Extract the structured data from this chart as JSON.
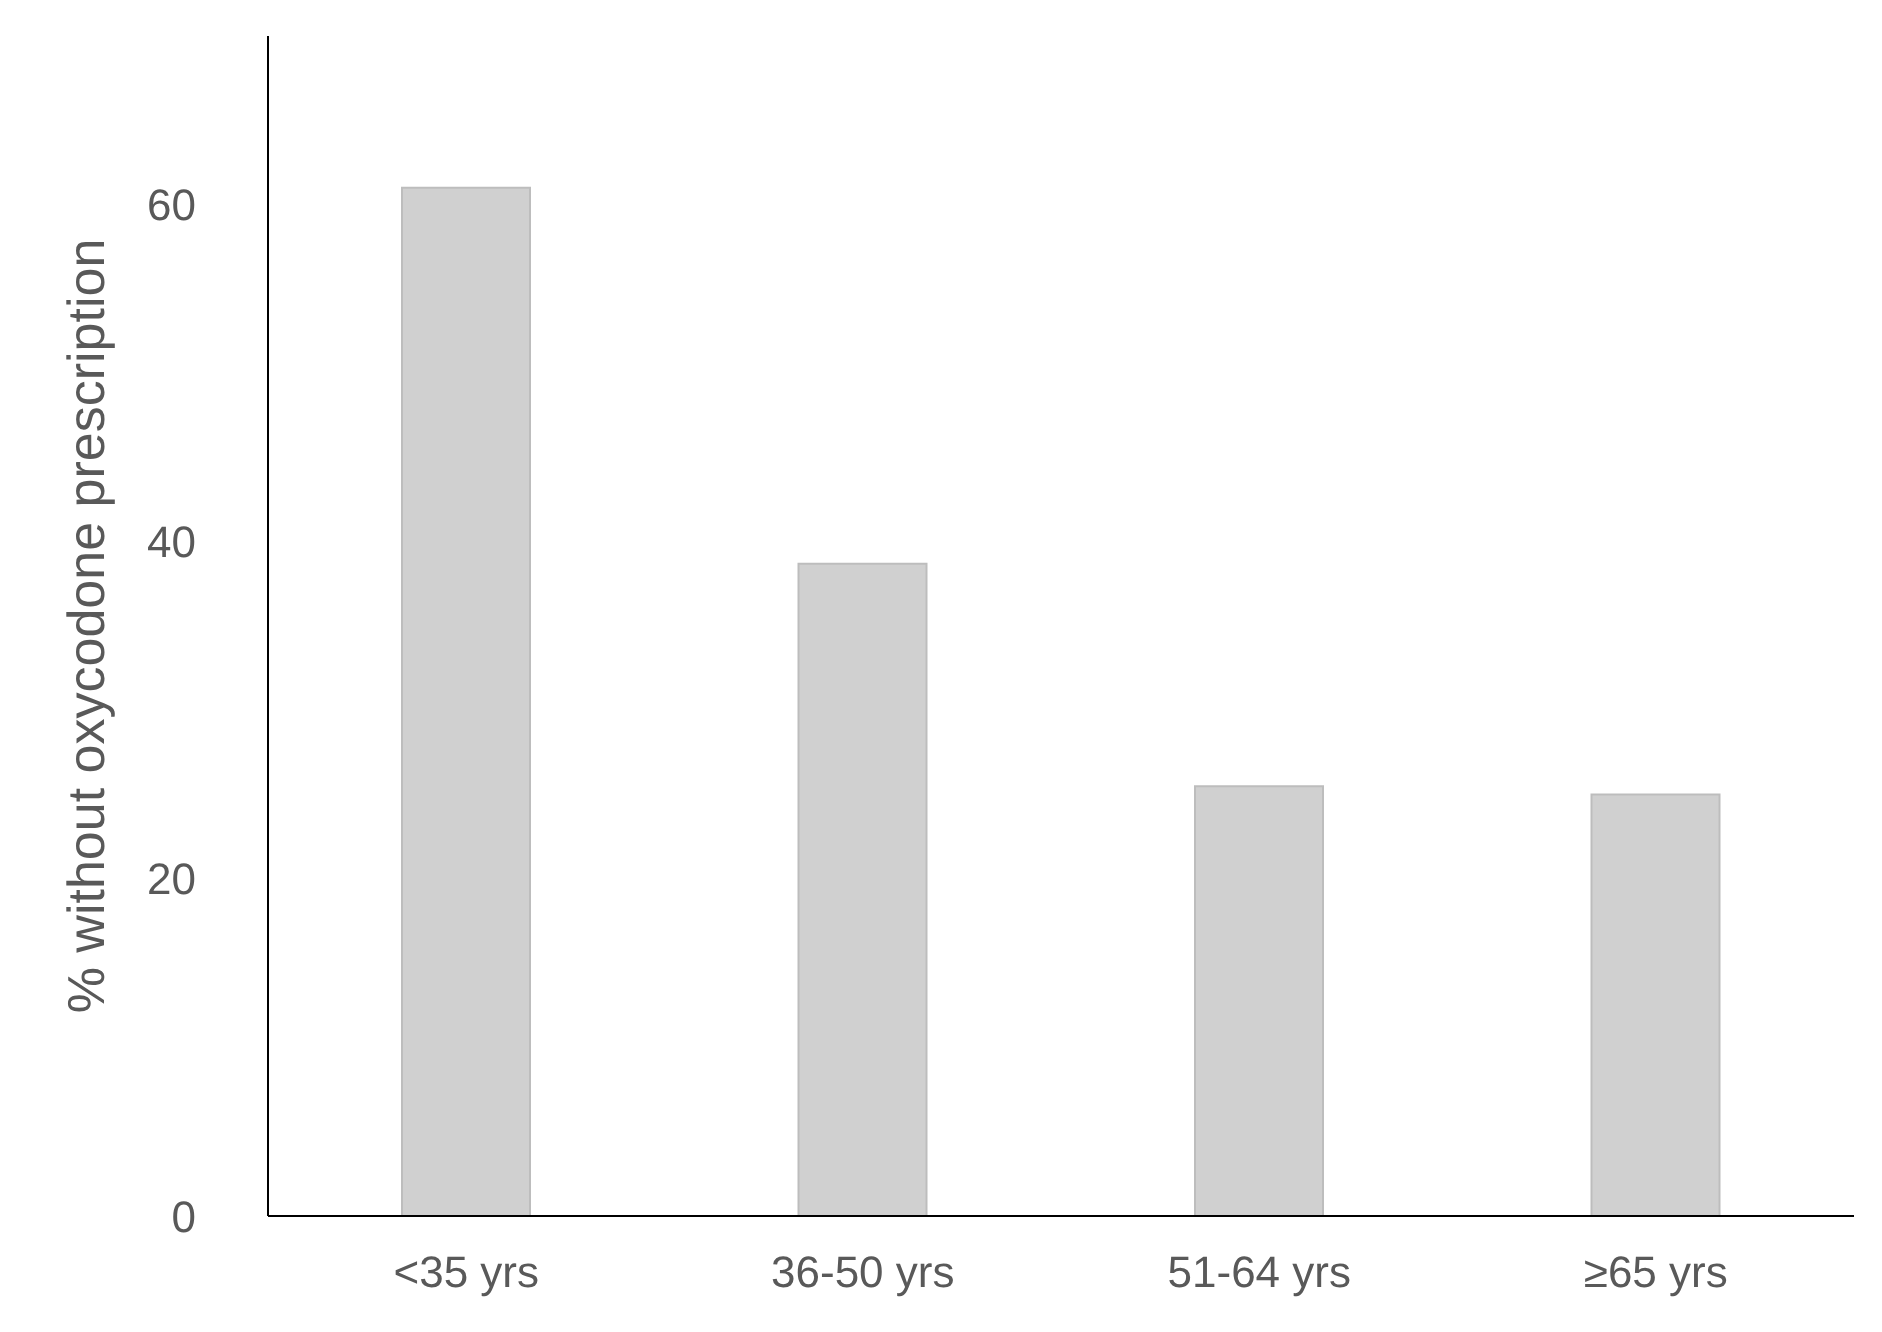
{
  "chart_data": {
    "type": "bar",
    "ylabel": "% without oxycodone prescription",
    "categories": [
      "<35 yrs",
      "36-50 yrs",
      "51-64 yrs",
      "≥65 yrs"
    ],
    "values": [
      61,
      38.7,
      25.5,
      25
    ],
    "color": "#d0d0d0",
    "ylim": [
      0,
      70
    ],
    "yticks": [
      0,
      20,
      40,
      60
    ],
    "grid": false,
    "legend": false
  }
}
